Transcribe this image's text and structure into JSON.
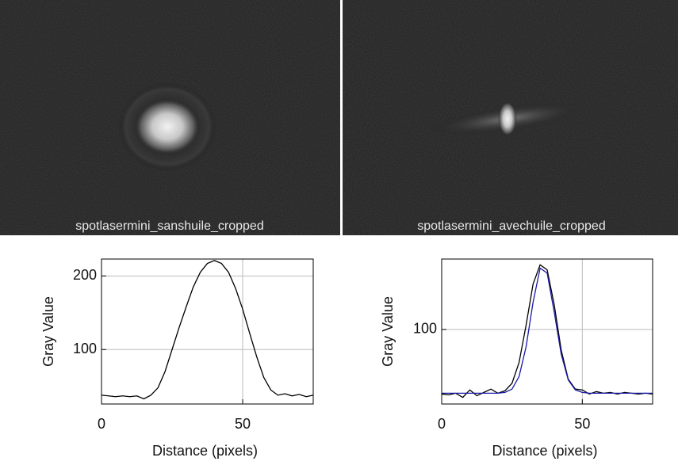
{
  "images": [
    {
      "caption": "spotlasermini_sanshuile_cropped"
    },
    {
      "caption": "spotlasermini_avechuile_cropped"
    }
  ],
  "chart_data": [
    {
      "type": "line",
      "xlabel": "Distance (pixels)",
      "ylabel": "Gray Value",
      "x": [
        0,
        2.5,
        5,
        7.5,
        10,
        12.5,
        15,
        17.5,
        20,
        22.5,
        25,
        27.5,
        30,
        32.5,
        35,
        37.5,
        40,
        42.5,
        45,
        47.5,
        50,
        52.5,
        55,
        57.5,
        60,
        62.5,
        65,
        67.5,
        70,
        72.5,
        75
      ],
      "series": [
        {
          "color": "#000000",
          "values": [
            38,
            37,
            36,
            37,
            36,
            37,
            33,
            38,
            48,
            70,
            100,
            130,
            158,
            185,
            205,
            217,
            221,
            217,
            205,
            183,
            155,
            122,
            90,
            62,
            45,
            38,
            40,
            37,
            39,
            36,
            38
          ]
        }
      ],
      "xlim": [
        0,
        75
      ],
      "ylim": [
        26,
        223
      ],
      "xticks": [
        0,
        50
      ],
      "yticks": [
        100,
        200
      ],
      "grid": true
    },
    {
      "type": "line",
      "xlabel": "Distance (pixels)",
      "ylabel": "Gray Value",
      "x": [
        0,
        2.5,
        5,
        7.5,
        10,
        12.5,
        15,
        17.5,
        20,
        22.5,
        25,
        27.5,
        30,
        32.5,
        35,
        37.5,
        40,
        42.5,
        45,
        47.5,
        50,
        52.5,
        55,
        57.5,
        60,
        62.5,
        65,
        67.5,
        70,
        72.5,
        75
      ],
      "series": [
        {
          "color": "#000000",
          "values": [
            22,
            21,
            23,
            18,
            27,
            20,
            24,
            28,
            23,
            26,
            35,
            60,
            105,
            155,
            178,
            172,
            130,
            75,
            40,
            28,
            27,
            22,
            25,
            23,
            24,
            22,
            24,
            23,
            22,
            23,
            22
          ]
        },
        {
          "color": "#1a1aa8",
          "values": [
            23,
            23,
            23,
            23,
            23,
            23,
            23,
            23,
            23,
            24,
            28,
            43,
            79,
            133,
            174,
            168,
            121,
            70,
            39,
            27,
            24,
            23,
            23,
            23,
            23,
            23,
            23,
            23,
            23,
            23,
            23
          ]
        }
      ],
      "xlim": [
        0,
        75
      ],
      "ylim": [
        10,
        185
      ],
      "xticks": [
        0,
        50
      ],
      "yticks": [
        100
      ],
      "grid": true
    }
  ]
}
